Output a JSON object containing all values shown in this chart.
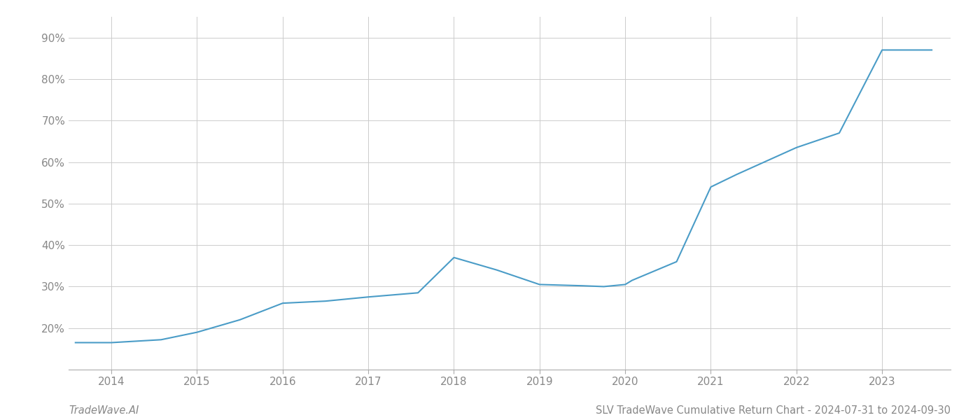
{
  "x_values": [
    2013.58,
    2014.0,
    2014.58,
    2015.0,
    2015.5,
    2016.0,
    2016.5,
    2017.0,
    2017.58,
    2018.0,
    2018.5,
    2019.0,
    2019.5,
    2019.75,
    2020.0,
    2020.08,
    2020.6,
    2021.0,
    2021.3,
    2022.0,
    2022.5,
    2023.0,
    2023.58
  ],
  "y_values": [
    16.5,
    16.5,
    17.2,
    19.0,
    22.0,
    26.0,
    26.5,
    27.5,
    28.5,
    37.0,
    34.0,
    30.5,
    30.2,
    30.0,
    30.5,
    31.5,
    36.0,
    54.0,
    57.0,
    63.5,
    67.0,
    87.0,
    87.0
  ],
  "line_color": "#4a9cc7",
  "line_width": 1.5,
  "title": "SLV TradeWave Cumulative Return Chart - 2024-07-31 to 2024-09-30",
  "watermark_left": "TradeWave.AI",
  "background_color": "#ffffff",
  "grid_color": "#cccccc",
  "x_tick_labels": [
    "2014",
    "2015",
    "2016",
    "2017",
    "2018",
    "2019",
    "2020",
    "2021",
    "2022",
    "2023"
  ],
  "x_tick_positions": [
    2014,
    2015,
    2016,
    2017,
    2018,
    2019,
    2020,
    2021,
    2022,
    2023
  ],
  "y_ticks": [
    20,
    30,
    40,
    50,
    60,
    70,
    80,
    90
  ],
  "y_tick_labels": [
    "20%",
    "30%",
    "40%",
    "50%",
    "60%",
    "70%",
    "80%",
    "90%"
  ],
  "xlim": [
    2013.5,
    2023.8
  ],
  "ylim": [
    10,
    95
  ],
  "title_fontsize": 10.5,
  "watermark_fontsize": 10.5,
  "tick_fontsize": 11,
  "tick_color": "#888888",
  "spine_color": "#aaaaaa"
}
